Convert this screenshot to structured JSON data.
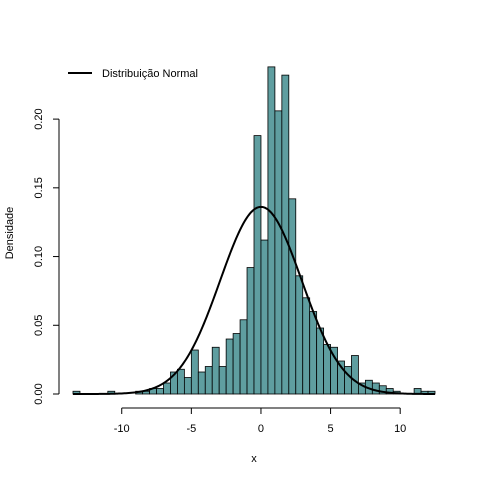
{
  "chart_data": {
    "type": "bar",
    "xlabel": "x",
    "ylabel": "Densidade",
    "xlim": [
      -13.5,
      12.5
    ],
    "ylim": [
      0,
      0.235
    ],
    "x_ticks": [
      -10,
      -5,
      0,
      5,
      10
    ],
    "x_tick_labels": [
      "-10",
      "-5",
      "0",
      "5",
      "10"
    ],
    "y_ticks": [
      0,
      0.05,
      0.1,
      0.15,
      0.2
    ],
    "y_tick_labels": [
      "0.00",
      "0.05",
      "0.10",
      "0.15",
      "0.20"
    ],
    "bar_color": "#5f9ea0",
    "histogram": {
      "bin_start": -13.5,
      "bin_width": 0.5,
      "densities": [
        0.002,
        0,
        0,
        0,
        0,
        0.002,
        0,
        0,
        0,
        0.002,
        0.002,
        0.004,
        0.004,
        0.008,
        0.016,
        0.018,
        0.012,
        0.032,
        0.016,
        0.02,
        0.034,
        0.02,
        0.04,
        0.044,
        0.054,
        0.092,
        0.188,
        0.112,
        0.238,
        0.206,
        0.232,
        0.142,
        0.086,
        0.07,
        0.06,
        0.048,
        0.036,
        0.034,
        0.024,
        0.02,
        0.028,
        0.008,
        0.01,
        0.008,
        0.006,
        0.004,
        0.002,
        0,
        0,
        0.004,
        0.002,
        0.002
      ]
    },
    "series": [
      {
        "name": "Distribuição Normal",
        "distribution": "normal",
        "mean": 0,
        "sd": 2.93,
        "color": "#000000"
      }
    ],
    "legend_position": "top-left",
    "grid": false
  }
}
